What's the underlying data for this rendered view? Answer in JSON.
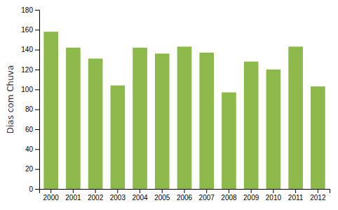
{
  "chart_data": {
    "type": "bar",
    "categories": [
      "2000",
      "2001",
      "2002",
      "2003",
      "2004",
      "2005",
      "2006",
      "2007",
      "2008",
      "2009",
      "2010",
      "2011",
      "2012"
    ],
    "values": [
      158,
      142,
      131,
      104,
      142,
      136,
      143,
      137,
      97,
      128,
      120,
      143,
      103
    ],
    "color": "#8db84a",
    "ylabel": "Dias com Chuva",
    "ylim": [
      0,
      180
    ],
    "yticks": [
      0,
      20,
      40,
      60,
      80,
      100,
      120,
      140,
      160,
      180
    ],
    "grid": false
  }
}
